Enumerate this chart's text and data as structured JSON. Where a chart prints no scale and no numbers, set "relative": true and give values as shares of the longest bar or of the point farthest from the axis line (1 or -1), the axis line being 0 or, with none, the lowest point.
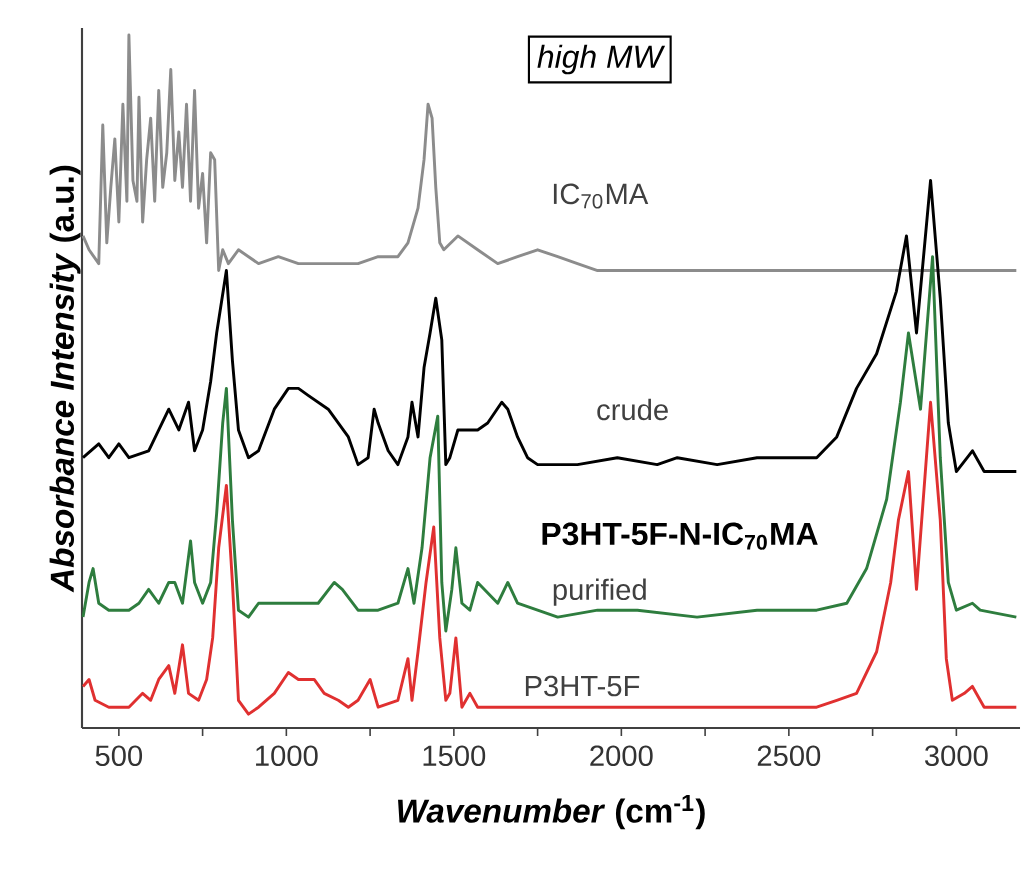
{
  "chart_data": {
    "type": "line",
    "relative": true,
    "xlabel": "*Wavenumber* (cm$^{-1}$)",
    "ylabel": "*Absorbance Intensity* (a.u.)",
    "xlim": [
      390,
      3190
    ],
    "xticks": [
      500,
      {
        "value": 750,
        "label": null
      },
      1000,
      {
        "value": 1250,
        "label": null
      },
      1500,
      {
        "value": 1750,
        "label": null
      },
      2000,
      {
        "value": 2250,
        "label": null
      },
      2500,
      {
        "value": 2750,
        "label": null
      },
      3000
    ],
    "annotations": [
      "high MW",
      "P3HT-5F-N-IC$_{70}$MA"
    ],
    "series": [
      {
        "name": "IC$_{70}$MA",
        "color": "#8c8c8c",
        "x": [
          393,
          411,
          440,
          452,
          464,
          476,
          488,
          500,
          512,
          524,
          530,
          542,
          554,
          560,
          571,
          583,
          595,
          607,
          619,
          631,
          643,
          655,
          667,
          679,
          690,
          702,
          714,
          726,
          738,
          750,
          762,
          774,
          786,
          798,
          810,
          827,
          857,
          917,
          976,
          1036,
          1095,
          1155,
          1214,
          1274,
          1333,
          1363,
          1393,
          1411,
          1423,
          1435,
          1446,
          1458,
          1470,
          1512,
          1571,
          1631,
          1690,
          1750,
          1810,
          1869,
          1929,
          1988,
          2048,
          2107,
          2226,
          2405,
          2524,
          2643,
          2762,
          2881,
          3000,
          3119,
          3179
        ],
        "values": [
          0.71,
          0.69,
          0.67,
          0.87,
          0.7,
          0.78,
          0.85,
          0.73,
          0.9,
          0.76,
          1,
          0.79,
          0.76,
          0.91,
          0.73,
          0.82,
          0.88,
          0.76,
          0.92,
          0.78,
          0.83,
          0.95,
          0.79,
          0.86,
          0.78,
          0.9,
          0.76,
          0.92,
          0.75,
          0.8,
          0.7,
          0.83,
          0.82,
          0.66,
          0.69,
          0.67,
          0.69,
          0.67,
          0.68,
          0.67,
          0.67,
          0.67,
          0.67,
          0.68,
          0.68,
          0.7,
          0.75,
          0.82,
          0.9,
          0.88,
          0.78,
          0.7,
          0.69,
          0.71,
          0.69,
          0.67,
          0.68,
          0.69,
          0.68,
          0.67,
          0.66,
          0.66,
          0.66,
          0.66,
          0.66,
          0.66,
          0.66,
          0.66,
          0.66,
          0.66,
          0.66,
          0.66,
          0.66
        ]
      },
      {
        "name": "crude",
        "color": "#000000",
        "x": [
          393,
          440,
          470,
          500,
          530,
          589,
          649,
          679,
          708,
          726,
          750,
          774,
          792,
          821,
          839,
          857,
          887,
          917,
          964,
          1006,
          1036,
          1065,
          1125,
          1155,
          1185,
          1214,
          1244,
          1262,
          1274,
          1304,
          1333,
          1363,
          1375,
          1393,
          1411,
          1429,
          1446,
          1464,
          1476,
          1488,
          1512,
          1571,
          1601,
          1643,
          1661,
          1690,
          1720,
          1750,
          1869,
          1988,
          2107,
          2167,
          2286,
          2405,
          2583,
          2643,
          2702,
          2762,
          2821,
          2851,
          2881,
          2923,
          2952,
          2976,
          3000,
          3048,
          3083,
          3179
        ],
        "values": [
          0.39,
          0.41,
          0.39,
          0.41,
          0.39,
          0.4,
          0.46,
          0.43,
          0.47,
          0.4,
          0.43,
          0.5,
          0.57,
          0.66,
          0.53,
          0.43,
          0.39,
          0.4,
          0.46,
          0.49,
          0.49,
          0.48,
          0.46,
          0.44,
          0.42,
          0.38,
          0.39,
          0.46,
          0.44,
          0.4,
          0.38,
          0.42,
          0.47,
          0.42,
          0.52,
          0.57,
          0.62,
          0.56,
          0.38,
          0.39,
          0.43,
          0.43,
          0.44,
          0.47,
          0.46,
          0.42,
          0.39,
          0.38,
          0.38,
          0.39,
          0.38,
          0.39,
          0.38,
          0.39,
          0.39,
          0.42,
          0.49,
          0.54,
          0.63,
          0.71,
          0.57,
          0.79,
          0.62,
          0.44,
          0.37,
          0.4,
          0.37,
          0.37
        ]
      },
      {
        "name": "purified",
        "color": "#2e7d3e",
        "x": [
          393,
          411,
          423,
          440,
          470,
          530,
          560,
          589,
          619,
          649,
          667,
          690,
          714,
          726,
          750,
          774,
          792,
          810,
          821,
          839,
          857,
          887,
          917,
          976,
          1036,
          1095,
          1143,
          1167,
          1214,
          1274,
          1333,
          1363,
          1381,
          1405,
          1429,
          1452,
          1464,
          1476,
          1494,
          1506,
          1524,
          1548,
          1571,
          1631,
          1661,
          1690,
          1750,
          1810,
          1929,
          2048,
          2226,
          2405,
          2583,
          2673,
          2732,
          2792,
          2833,
          2857,
          2893,
          2929,
          2952,
          2976,
          3000,
          3048,
          3071,
          3179
        ],
        "values": [
          0.16,
          0.21,
          0.23,
          0.18,
          0.17,
          0.17,
          0.18,
          0.2,
          0.18,
          0.21,
          0.21,
          0.18,
          0.27,
          0.21,
          0.18,
          0.21,
          0.31,
          0.44,
          0.49,
          0.3,
          0.17,
          0.16,
          0.18,
          0.18,
          0.18,
          0.18,
          0.21,
          0.2,
          0.17,
          0.17,
          0.18,
          0.23,
          0.18,
          0.26,
          0.39,
          0.45,
          0.21,
          0.14,
          0.2,
          0.26,
          0.18,
          0.17,
          0.21,
          0.18,
          0.21,
          0.18,
          0.17,
          0.16,
          0.17,
          0.17,
          0.16,
          0.17,
          0.17,
          0.18,
          0.23,
          0.33,
          0.47,
          0.57,
          0.46,
          0.68,
          0.39,
          0.21,
          0.17,
          0.18,
          0.17,
          0.16
        ]
      },
      {
        "name": "P3HT-5F",
        "color": "#e03030",
        "x": [
          393,
          411,
          429,
          470,
          530,
          571,
          595,
          619,
          649,
          667,
          690,
          708,
          738,
          762,
          780,
          798,
          821,
          839,
          857,
          887,
          917,
          964,
          1006,
          1036,
          1083,
          1113,
          1155,
          1185,
          1214,
          1250,
          1274,
          1333,
          1363,
          1375,
          1393,
          1417,
          1440,
          1458,
          1476,
          1488,
          1506,
          1524,
          1548,
          1571,
          1690,
          1929,
          2167,
          2405,
          2583,
          2643,
          2702,
          2762,
          2804,
          2827,
          2857,
          2881,
          2923,
          2952,
          2970,
          2988,
          3024,
          3048,
          3083,
          3179
        ],
        "values": [
          0.06,
          0.07,
          0.04,
          0.03,
          0.03,
          0.05,
          0.04,
          0.07,
          0.09,
          0.05,
          0.12,
          0.05,
          0.04,
          0.07,
          0.13,
          0.26,
          0.35,
          0.21,
          0.04,
          0.02,
          0.03,
          0.05,
          0.08,
          0.07,
          0.07,
          0.05,
          0.04,
          0.03,
          0.04,
          0.07,
          0.03,
          0.04,
          0.1,
          0.04,
          0.11,
          0.21,
          0.29,
          0.13,
          0.04,
          0.05,
          0.13,
          0.03,
          0.05,
          0.03,
          0.03,
          0.03,
          0.03,
          0.03,
          0.03,
          0.04,
          0.05,
          0.11,
          0.21,
          0.3,
          0.37,
          0.2,
          0.47,
          0.3,
          0.1,
          0.04,
          0.05,
          0.06,
          0.03,
          0.03
        ]
      }
    ]
  }
}
